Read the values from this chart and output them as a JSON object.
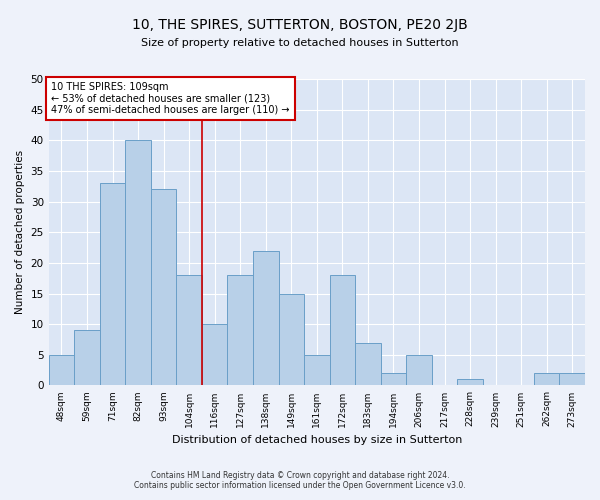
{
  "title": "10, THE SPIRES, SUTTERTON, BOSTON, PE20 2JB",
  "subtitle": "Size of property relative to detached houses in Sutterton",
  "xlabel": "Distribution of detached houses by size in Sutterton",
  "ylabel": "Number of detached properties",
  "categories": [
    "48sqm",
    "59sqm",
    "71sqm",
    "82sqm",
    "93sqm",
    "104sqm",
    "116sqm",
    "127sqm",
    "138sqm",
    "149sqm",
    "161sqm",
    "172sqm",
    "183sqm",
    "194sqm",
    "206sqm",
    "217sqm",
    "228sqm",
    "239sqm",
    "251sqm",
    "262sqm",
    "273sqm"
  ],
  "values": [
    5,
    9,
    33,
    40,
    32,
    18,
    10,
    18,
    22,
    15,
    5,
    18,
    7,
    2,
    5,
    0,
    1,
    0,
    0,
    2,
    2
  ],
  "bar_color": "#b8d0e8",
  "bar_edge_color": "#6a9fc8",
  "bg_color": "#dce6f5",
  "grid_color": "#ffffff",
  "annotation_line1": "10 THE SPIRES: 109sqm",
  "annotation_line2": "← 53% of detached houses are smaller (123)",
  "annotation_line3": "47% of semi-detached houses are larger (110) →",
  "annotation_box_color": "#ffffff",
  "annotation_box_edge": "#cc0000",
  "marker_line_color": "#cc0000",
  "ylim": [
    0,
    50
  ],
  "yticks": [
    0,
    5,
    10,
    15,
    20,
    25,
    30,
    35,
    40,
    45,
    50
  ],
  "footer1": "Contains HM Land Registry data © Crown copyright and database right 2024.",
  "footer2": "Contains public sector information licensed under the Open Government Licence v3.0.",
  "fig_bg": "#eef2fa"
}
